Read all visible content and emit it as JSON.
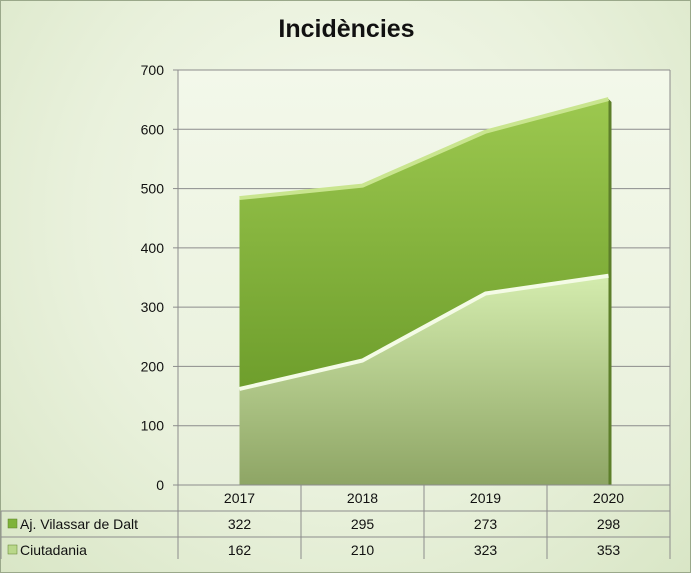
{
  "chart_data": {
    "type": "area",
    "stacked": true,
    "title": "Incidències",
    "categories": [
      "2017",
      "2018",
      "2019",
      "2020"
    ],
    "series": [
      {
        "name": "Ciutadania",
        "values": [
          162,
          210,
          323,
          353
        ],
        "color": "#b9d88a"
      },
      {
        "name": "Aj. Vilassar de Dalt",
        "values": [
          322,
          295,
          273,
          298
        ],
        "color": "#7fb33a"
      }
    ],
    "ylim": [
      0,
      700
    ],
    "yticks": [
      0,
      100,
      200,
      300,
      400,
      500,
      600,
      700
    ],
    "grid": true,
    "legend": "data-table-below"
  }
}
